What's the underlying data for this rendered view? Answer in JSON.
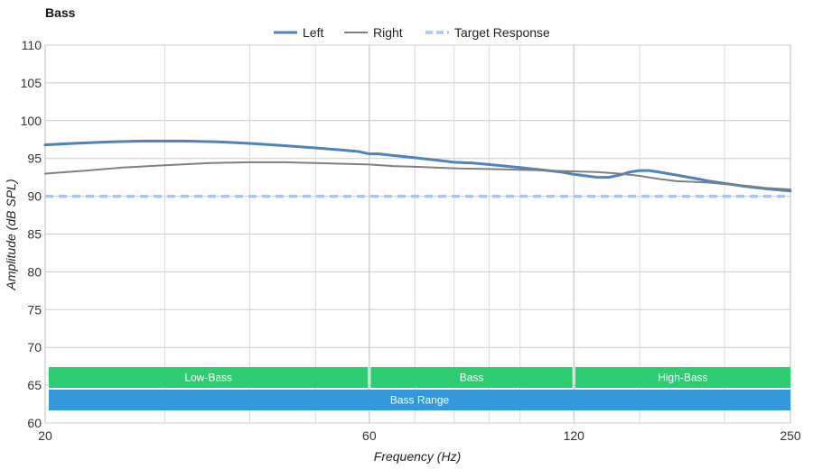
{
  "chart_data": {
    "type": "line",
    "title": "Bass",
    "xlabel": "Frequency (Hz)",
    "ylabel": "Amplitude (dB SPL)",
    "xscale": "log",
    "xlim": [
      20,
      250
    ],
    "ylim": [
      60,
      110
    ],
    "xticks": [
      20,
      60,
      120,
      250
    ],
    "yticks": [
      60,
      65,
      70,
      75,
      80,
      85,
      90,
      95,
      100,
      105,
      110
    ],
    "grid": true,
    "legend_position": "top-center",
    "series": [
      {
        "name": "Left",
        "color": "#4f81bd",
        "style": "solid-thick",
        "points": [
          [
            20,
            96.8
          ],
          [
            22,
            97.0
          ],
          [
            25,
            97.2
          ],
          [
            28,
            97.3
          ],
          [
            32,
            97.3
          ],
          [
            36,
            97.2
          ],
          [
            40,
            97.0
          ],
          [
            45,
            96.7
          ],
          [
            50,
            96.4
          ],
          [
            55,
            96.1
          ],
          [
            58,
            95.9
          ],
          [
            60,
            95.6
          ],
          [
            62,
            95.6
          ],
          [
            65,
            95.4
          ],
          [
            70,
            95.1
          ],
          [
            75,
            94.8
          ],
          [
            80,
            94.5
          ],
          [
            85,
            94.4
          ],
          [
            90,
            94.2
          ],
          [
            95,
            94.0
          ],
          [
            100,
            93.8
          ],
          [
            105,
            93.6
          ],
          [
            110,
            93.4
          ],
          [
            115,
            93.2
          ],
          [
            120,
            92.9
          ],
          [
            125,
            92.7
          ],
          [
            130,
            92.5
          ],
          [
            135,
            92.5
          ],
          [
            140,
            92.8
          ],
          [
            145,
            93.2
          ],
          [
            150,
            93.4
          ],
          [
            155,
            93.4
          ],
          [
            160,
            93.2
          ],
          [
            170,
            92.8
          ],
          [
            180,
            92.4
          ],
          [
            190,
            92.0
          ],
          [
            200,
            91.7
          ],
          [
            215,
            91.3
          ],
          [
            230,
            91.0
          ],
          [
            250,
            90.7
          ]
        ]
      },
      {
        "name": "Right",
        "color": "#7f7f7f",
        "style": "solid",
        "points": [
          [
            20,
            93.0
          ],
          [
            23,
            93.4
          ],
          [
            26,
            93.8
          ],
          [
            30,
            94.1
          ],
          [
            35,
            94.4
          ],
          [
            40,
            94.5
          ],
          [
            45,
            94.5
          ],
          [
            50,
            94.4
          ],
          [
            55,
            94.3
          ],
          [
            60,
            94.2
          ],
          [
            65,
            94.0
          ],
          [
            70,
            93.9
          ],
          [
            80,
            93.7
          ],
          [
            90,
            93.6
          ],
          [
            100,
            93.5
          ],
          [
            110,
            93.4
          ],
          [
            120,
            93.3
          ],
          [
            130,
            93.2
          ],
          [
            140,
            93.0
          ],
          [
            150,
            92.7
          ],
          [
            160,
            92.3
          ],
          [
            170,
            92.0
          ],
          [
            180,
            91.9
          ],
          [
            190,
            91.8
          ],
          [
            200,
            91.6
          ],
          [
            215,
            91.4
          ],
          [
            230,
            91.1
          ],
          [
            250,
            90.9
          ]
        ]
      },
      {
        "name": "Target Response",
        "color": "#a9c4f5",
        "style": "dashed",
        "points": [
          [
            20,
            90
          ],
          [
            250,
            90
          ]
        ]
      }
    ],
    "bands": [
      {
        "label": "Low-Bass",
        "from": 20,
        "to": 60,
        "color": "#2ecc71"
      },
      {
        "label": "Bass",
        "from": 60,
        "to": 120,
        "color": "#2ecc71"
      },
      {
        "label": "High-Bass",
        "from": 120,
        "to": 250,
        "color": "#2ecc71"
      },
      {
        "label": "Bass Range",
        "from": 20,
        "to": 250,
        "color": "#3498db"
      }
    ]
  }
}
